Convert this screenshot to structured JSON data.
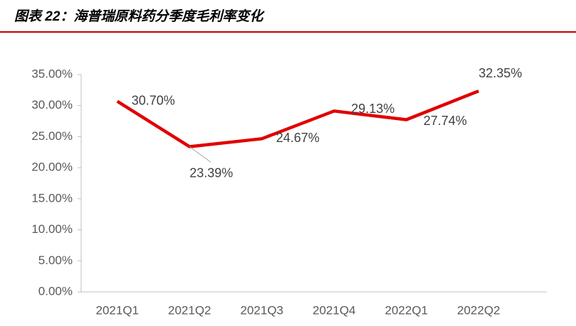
{
  "chart_data": {
    "type": "line",
    "title": "图表 22：海普瑞原料药分季度毛利率变化",
    "categories": [
      "2021Q1",
      "2021Q2",
      "2021Q3",
      "2021Q4",
      "2022Q1",
      "2022Q2"
    ],
    "series": [
      {
        "name": "毛利率",
        "color": "#e00000",
        "values": [
          30.7,
          23.39,
          24.67,
          29.13,
          27.74,
          32.35
        ],
        "value_labels": [
          "30.70%",
          "23.39%",
          "24.67%",
          "29.13%",
          "27.74%",
          "32.35%"
        ]
      }
    ],
    "ylim": [
      0,
      35
    ],
    "yticks": [
      {
        "value": 0,
        "label": "0.00%"
      },
      {
        "value": 5,
        "label": "5.00%"
      },
      {
        "value": 10,
        "label": "10.00%"
      },
      {
        "value": 15,
        "label": "15.00%"
      },
      {
        "value": 20,
        "label": "20.00%"
      },
      {
        "value": 25,
        "label": "25.00%"
      },
      {
        "value": 30,
        "label": "30.00%"
      },
      {
        "value": 35,
        "label": "35.00%"
      }
    ]
  }
}
